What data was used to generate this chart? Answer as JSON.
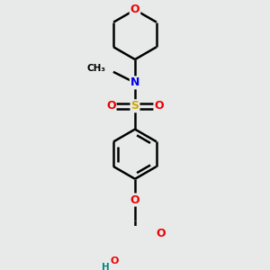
{
  "bg_color": "#e8eaea",
  "atom_colors": {
    "C": "#000000",
    "N": "#0000ee",
    "O": "#ee0000",
    "S": "#ccaa00",
    "H": "#008888"
  },
  "bond_color": "#000000",
  "bond_width": 1.8,
  "figsize": [
    3.0,
    3.0
  ],
  "dpi": 100,
  "xlim": [
    0.55,
    2.45
  ],
  "ylim": [
    0.05,
    2.95
  ]
}
